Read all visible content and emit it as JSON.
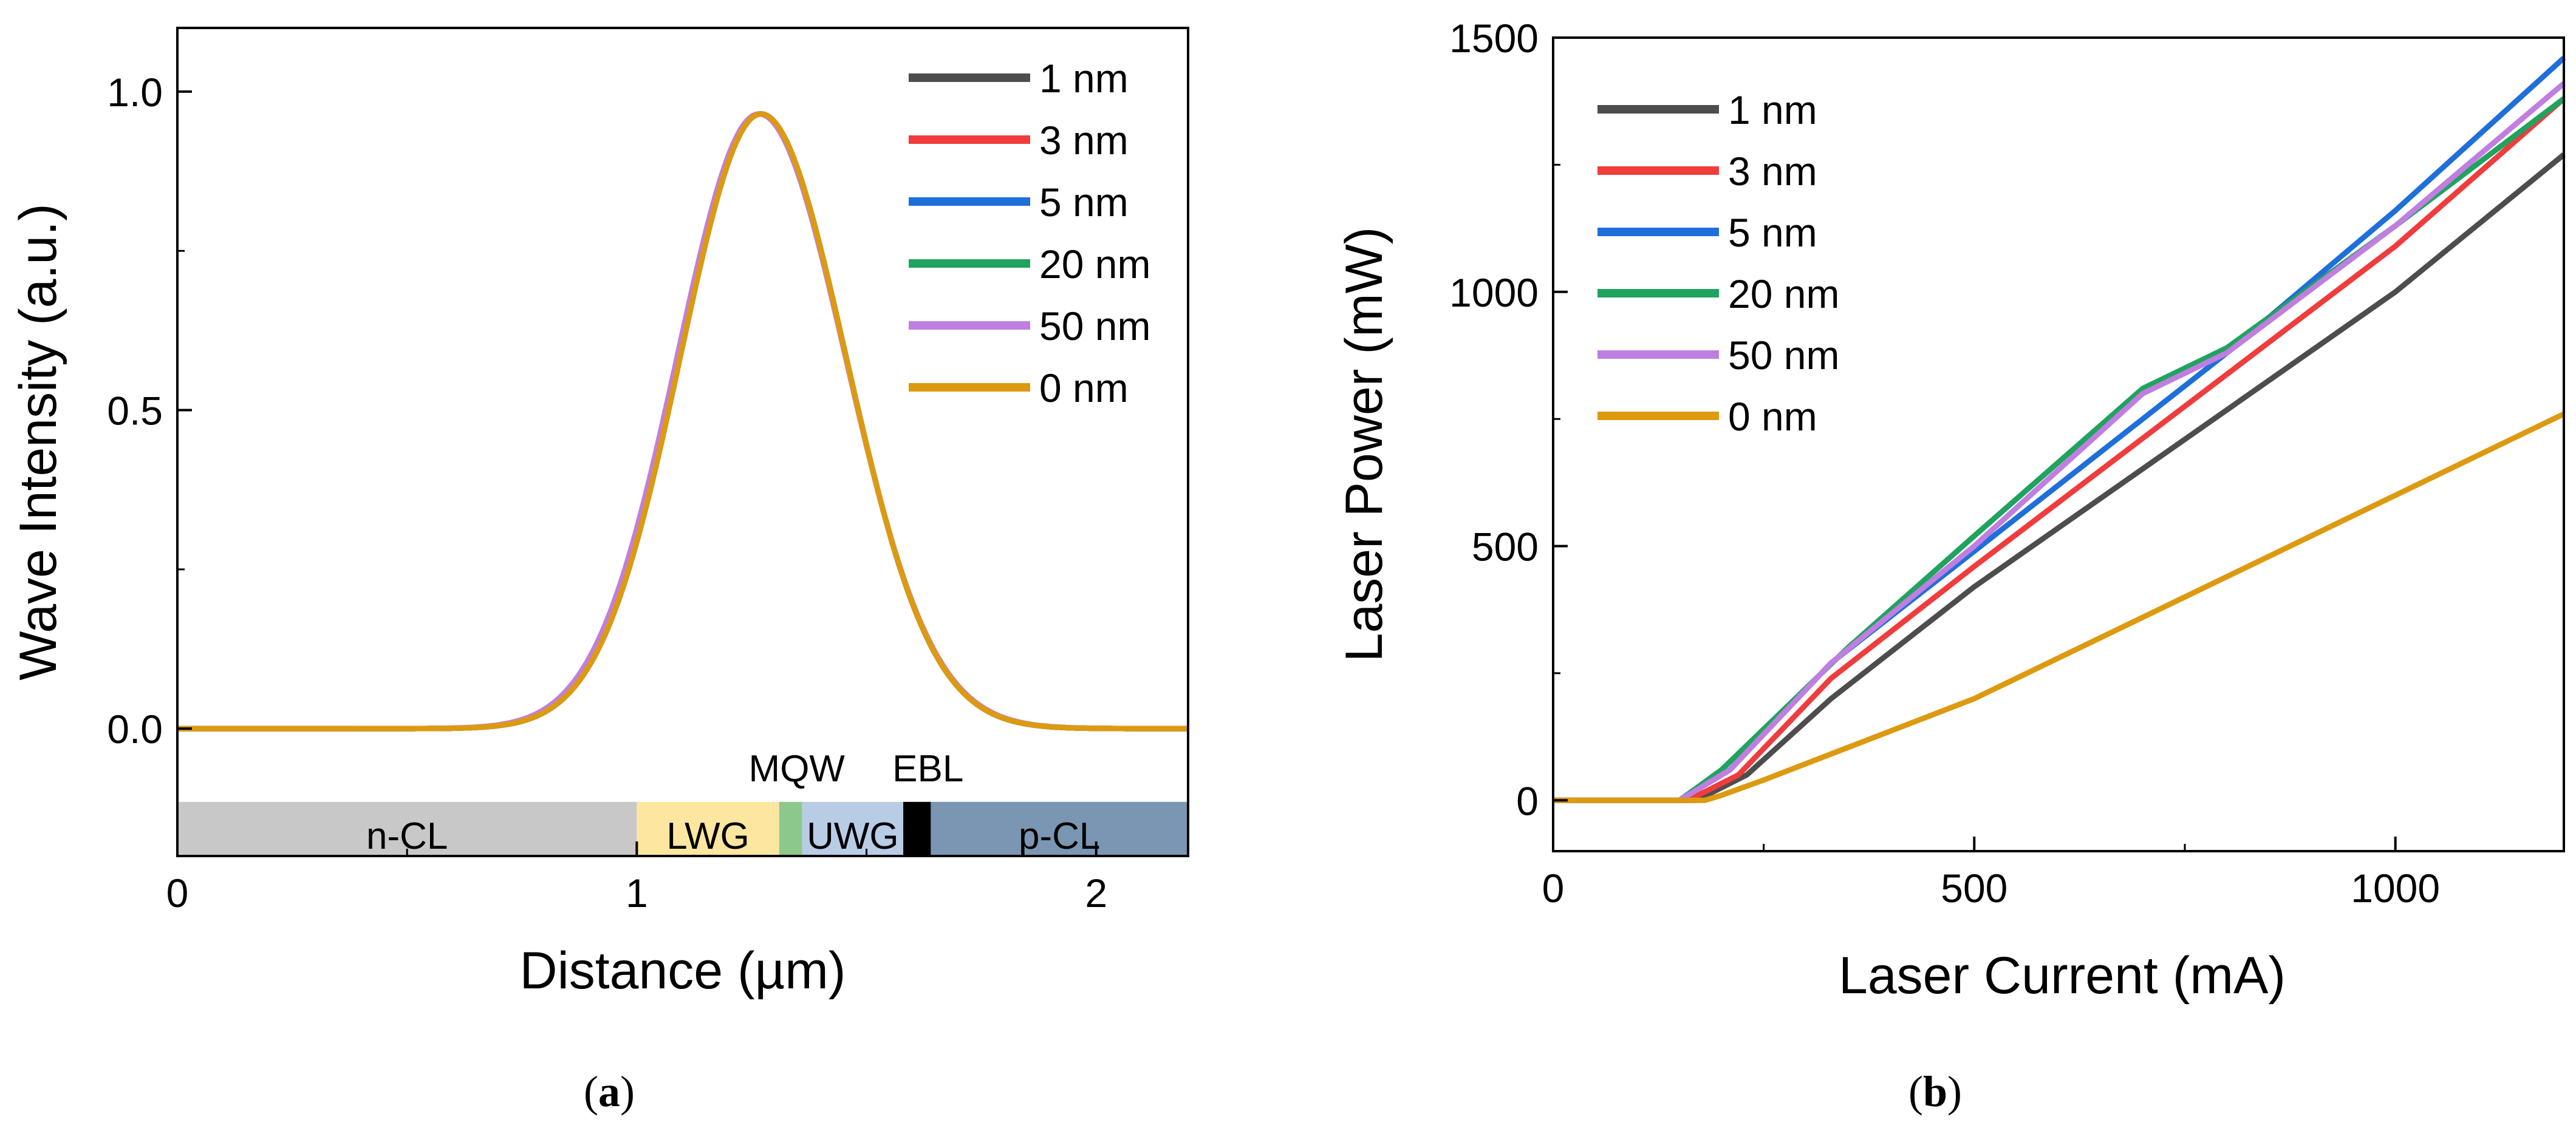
{
  "chart_data": [
    {
      "type": "line",
      "panel": "a",
      "caption_open": "(",
      "caption_letter": "a",
      "caption_close": ")",
      "xlabel": "Distance (µm)",
      "ylabel": "Wave Intensity (a.u.)",
      "xlim": [
        0,
        2.2
      ],
      "ylim": [
        -0.2,
        1.1
      ],
      "xticks": [
        0,
        1,
        2
      ],
      "xtick_labels": [
        "0",
        "1",
        "2"
      ],
      "yticks": [
        0.0,
        0.5,
        1.0
      ],
      "ytick_labels": [
        "0.0",
        "0.5",
        "1.0"
      ],
      "legend_position": "top-right",
      "layers": [
        {
          "label": "n-CL",
          "from": 0.0,
          "to": 1.0,
          "color": "#c8c8c8"
        },
        {
          "label": "LWG",
          "from": 1.0,
          "to": 1.31,
          "color": "#fde6a0"
        },
        {
          "label": "MQW",
          "from": 1.31,
          "to": 1.36,
          "color": "#8cc88c"
        },
        {
          "label": "UWG",
          "from": 1.36,
          "to": 1.58,
          "color": "#b8cce6"
        },
        {
          "label": "EBL",
          "from": 1.58,
          "to": 1.64,
          "color": "#000000"
        },
        {
          "label": "p-CL",
          "from": 1.64,
          "to": 2.2,
          "color": "#7b96b2"
        }
      ],
      "layer_band": [
        -0.2,
        -0.115
      ],
      "profile": {
        "peak_x": 1.27,
        "peak_y": 0.965,
        "sigma_left": 0.175,
        "sigma_right": 0.185
      },
      "series": [
        {
          "name": "1 nm",
          "color": "#4d4d4d"
        },
        {
          "name": "3 nm",
          "color": "#f03c3c"
        },
        {
          "name": "5 nm",
          "color": "#1f6fdb"
        },
        {
          "name": "20 nm",
          "color": "#1fa35e"
        },
        {
          "name": "50 nm",
          "color": "#c07ee0"
        },
        {
          "name": "0 nm",
          "color": "#dd9a10"
        }
      ]
    },
    {
      "type": "line",
      "panel": "b",
      "caption_open": "(",
      "caption_letter": "b",
      "caption_close": ")",
      "xlabel": "Laser Current (mA)",
      "ylabel": "Laser Power (mW)",
      "xlim": [
        0,
        1200
      ],
      "ylim": [
        -100,
        1500
      ],
      "xticks": [
        0,
        500,
        1000
      ],
      "xtick_labels": [
        "0",
        "500",
        "1000"
      ],
      "yticks": [
        0,
        500,
        1000,
        1500
      ],
      "ytick_labels": [
        "0",
        "500",
        "1000",
        "1500"
      ],
      "legend_position": "top-left",
      "series": [
        {
          "name": "1 nm",
          "color": "#4d4d4d",
          "x": [
            0,
            170,
            230,
            330,
            500,
            1000,
            1200
          ],
          "y": [
            0,
            0,
            50,
            200,
            420,
            1000,
            1270
          ]
        },
        {
          "name": "3 nm",
          "color": "#f03c3c",
          "x": [
            0,
            160,
            220,
            330,
            500,
            1000,
            1200
          ],
          "y": [
            0,
            0,
            50,
            240,
            460,
            1090,
            1380
          ]
        },
        {
          "name": "5 nm",
          "color": "#1f6fdb",
          "x": [
            0,
            150,
            210,
            330,
            500,
            800,
            1000,
            1200
          ],
          "y": [
            0,
            0,
            60,
            270,
            490,
            880,
            1160,
            1460
          ]
        },
        {
          "name": "20 nm",
          "color": "#1fa35e",
          "x": [
            0,
            150,
            200,
            350,
            500,
            700,
            800,
            1000,
            1200
          ],
          "y": [
            0,
            0,
            60,
            300,
            520,
            810,
            890,
            1130,
            1380
          ]
        },
        {
          "name": "50 nm",
          "color": "#c07ee0",
          "x": [
            0,
            150,
            210,
            330,
            500,
            700,
            800,
            1000,
            1200
          ],
          "y": [
            0,
            0,
            60,
            270,
            500,
            800,
            880,
            1130,
            1410
          ]
        },
        {
          "name": "0 nm",
          "color": "#dd9a10",
          "x": [
            0,
            180,
            200,
            250,
            500,
            1000,
            1200
          ],
          "y": [
            0,
            0,
            10,
            40,
            200,
            600,
            760
          ]
        }
      ]
    }
  ]
}
